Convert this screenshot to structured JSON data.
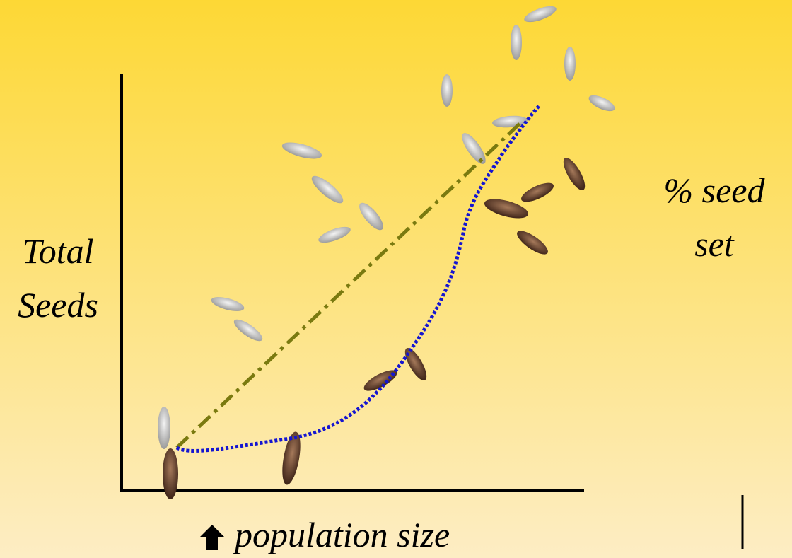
{
  "labels": {
    "y_axis": [
      "Total",
      "Seeds"
    ],
    "right": [
      "% seed",
      "set"
    ],
    "x_axis": "population size"
  }
}
